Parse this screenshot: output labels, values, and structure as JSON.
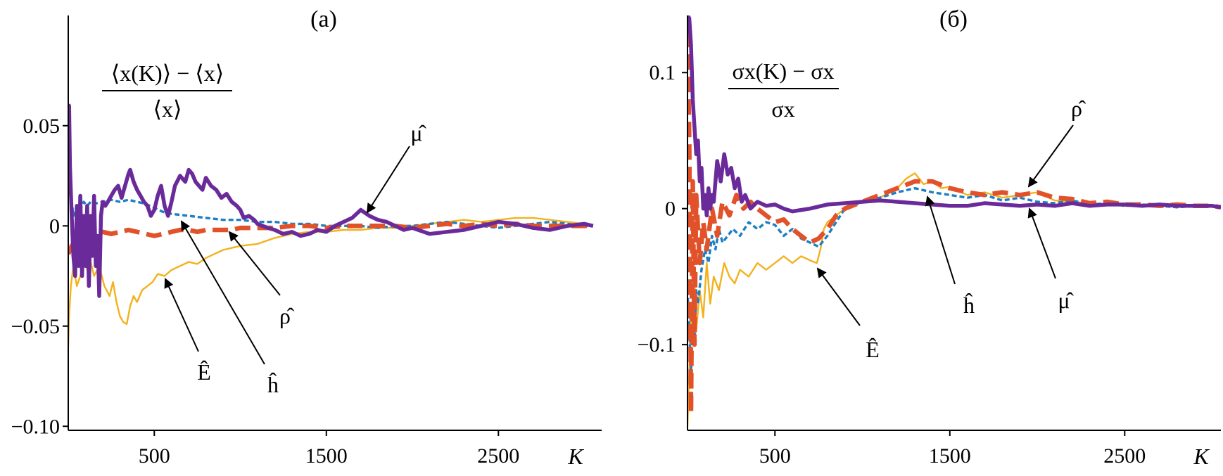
{
  "chart_data": [
    {
      "type": "line",
      "panel_label": "(а)",
      "ylabel_expression": {
        "numerator": "⟨x(K)⟩ − ⟨x⟩",
        "denominator": "⟨x⟩"
      },
      "xlabel": "K",
      "xlim": [
        0,
        3100
      ],
      "ylim": [
        -0.102,
        0.105
      ],
      "xticks": [
        500,
        1500,
        2500
      ],
      "xtick_labels": [
        "500",
        "1500",
        "2500"
      ],
      "yticks": [
        -0.1,
        -0.05,
        0,
        0.05
      ],
      "ytick_labels": [
        "−0.10",
        "−0.05",
        "0",
        "0.05"
      ],
      "grid": false,
      "series": [
        {
          "name": "Ê",
          "color": "#f2b21c",
          "style": "solid-thin",
          "x": [
            0,
            5,
            15,
            30,
            50,
            70,
            90,
            110,
            130,
            150,
            180,
            210,
            240,
            260,
            280,
            300,
            320,
            340,
            360,
            380,
            400,
            430,
            460,
            490,
            520,
            560,
            600,
            650,
            700,
            750,
            800,
            850,
            900,
            950,
            1000,
            1100,
            1200,
            1300,
            1400,
            1500,
            1600,
            1700,
            1800,
            1900,
            2000,
            2100,
            2200,
            2300,
            2400,
            2500,
            2600,
            2700,
            2800,
            2900,
            3000,
            3050
          ],
          "y": [
            -0.06,
            -0.045,
            -0.03,
            -0.02,
            -0.03,
            -0.025,
            -0.015,
            -0.022,
            -0.018,
            -0.025,
            -0.02,
            -0.03,
            -0.035,
            -0.028,
            -0.038,
            -0.045,
            -0.048,
            -0.049,
            -0.04,
            -0.035,
            -0.038,
            -0.032,
            -0.03,
            -0.028,
            -0.024,
            -0.025,
            -0.022,
            -0.02,
            -0.018,
            -0.019,
            -0.016,
            -0.014,
            -0.012,
            -0.011,
            -0.01,
            -0.009,
            -0.006,
            -0.004,
            -0.003,
            -0.003,
            -0.002,
            -0.002,
            -0.001,
            -0.001,
            0.0,
            0.001,
            0.002,
            0.003,
            0.002,
            0.003,
            0.004,
            0.004,
            0.003,
            0.002,
            0.001,
            0.0
          ]
        },
        {
          "name": "ĥ",
          "color": "#1c7fc4",
          "style": "dotted",
          "x": [
            0,
            10,
            30,
            50,
            70,
            90,
            110,
            130,
            150,
            200,
            250,
            300,
            350,
            400,
            450,
            500,
            550,
            600,
            700,
            800,
            900,
            1000,
            1100,
            1200,
            1300,
            1400,
            1500,
            1600,
            1700,
            1800,
            1900,
            2000,
            2100,
            2200,
            2300,
            2400,
            2500,
            2600,
            2700,
            2800,
            2900,
            3000,
            3050
          ],
          "y": [
            0.04,
            0.02,
            0.005,
            0.01,
            0.008,
            0.012,
            0.01,
            0.012,
            0.011,
            0.012,
            0.013,
            0.012,
            0.013,
            0.012,
            0.011,
            0.009,
            0.007,
            0.006,
            0.005,
            0.004,
            0.003,
            0.003,
            0.002,
            0.002,
            0.001,
            0.001,
            0.0,
            0.0,
            0.0,
            -0.001,
            0.0,
            0.0,
            0.001,
            0.002,
            0.001,
            0.0,
            -0.001,
            0.0,
            0.001,
            0.002,
            0.001,
            0.0,
            0.0
          ]
        },
        {
          "name": "ρ̂",
          "color": "#e2522a",
          "style": "dashed-thick",
          "x": [
            0,
            20,
            50,
            100,
            150,
            200,
            250,
            300,
            350,
            400,
            450,
            500,
            550,
            600,
            650,
            700,
            750,
            800,
            850,
            900,
            950,
            1000,
            1050,
            1100,
            1200,
            1300,
            1400,
            1500,
            1600,
            1700,
            1800,
            1900,
            2000,
            2100,
            2200,
            2300,
            2400,
            2500,
            2600,
            2700,
            2800,
            2900,
            3000,
            3050
          ],
          "y": [
            -0.014,
            -0.01,
            -0.006,
            -0.004,
            -0.003,
            -0.003,
            -0.004,
            -0.003,
            -0.002,
            -0.003,
            -0.004,
            -0.005,
            -0.004,
            -0.003,
            -0.002,
            -0.002,
            -0.003,
            -0.002,
            -0.002,
            -0.002,
            -0.002,
            -0.001,
            -0.001,
            -0.001,
            -0.001,
            0.0,
            0.0,
            -0.001,
            0.0,
            0.0,
            0.0,
            0.0,
            -0.001,
            0.0,
            0.001,
            0.0,
            0.001,
            0.0,
            0.001,
            0.0,
            0.0,
            0.0,
            0.0,
            0.0
          ]
        },
        {
          "name": "μ̂",
          "color": "#6a2a9a",
          "style": "solid-thick",
          "x": [
            0,
            5,
            10,
            20,
            30,
            40,
            50,
            60,
            70,
            80,
            90,
            100,
            110,
            120,
            130,
            140,
            150,
            160,
            170,
            180,
            190,
            200,
            215,
            230,
            250,
            270,
            290,
            310,
            330,
            350,
            360,
            380,
            400,
            420,
            440,
            460,
            480,
            500,
            520,
            540,
            560,
            580,
            600,
            620,
            650,
            680,
            700,
            720,
            740,
            760,
            780,
            800,
            830,
            860,
            890,
            920,
            950,
            980,
            1000,
            1020,
            1050,
            1080,
            1100,
            1130,
            1160,
            1200,
            1250,
            1300,
            1350,
            1400,
            1450,
            1500,
            1550,
            1600,
            1650,
            1700,
            1750,
            1800,
            1850,
            1900,
            1950,
            2000,
            2100,
            2200,
            2300,
            2400,
            2500,
            2600,
            2700,
            2800,
            2900,
            3000,
            3050
          ],
          "y": [
            0.015,
            0.06,
            0.03,
            0.005,
            -0.015,
            -0.025,
            0.01,
            -0.02,
            0.015,
            -0.025,
            0.005,
            -0.02,
            0.01,
            -0.03,
            0.005,
            -0.015,
            0.015,
            -0.02,
            -0.005,
            -0.035,
            0.005,
            0.012,
            0.01,
            0.012,
            0.015,
            0.018,
            0.02,
            0.014,
            0.02,
            0.026,
            0.028,
            0.022,
            0.018,
            0.015,
            0.012,
            0.01,
            0.005,
            0.008,
            0.015,
            0.02,
            0.01,
            0.005,
            0.012,
            0.02,
            0.025,
            0.022,
            0.028,
            0.026,
            0.022,
            0.02,
            0.018,
            0.024,
            0.02,
            0.018,
            0.014,
            0.016,
            0.012,
            0.01,
            0.008,
            0.004,
            0.005,
            0.003,
            0.001,
            0.0,
            -0.001,
            -0.002,
            -0.004,
            -0.003,
            -0.005,
            -0.004,
            -0.002,
            -0.003,
            0.0,
            0.002,
            0.004,
            0.008,
            0.005,
            0.003,
            0.002,
            0.0,
            -0.002,
            -0.001,
            -0.004,
            -0.003,
            -0.002,
            0.0,
            0.002,
            0.001,
            -0.001,
            -0.002,
            0.0,
            0.001,
            0.0
          ]
        }
      ],
      "annotations": [
        "μ̂",
        "ρ̂",
        "ĥ",
        "Ê"
      ]
    },
    {
      "type": "line",
      "panel_label": "(б)",
      "ylabel_expression": {
        "numerator": "σx(K) − σx",
        "denominator": "σx"
      },
      "xlabel": "K",
      "xlim": [
        0,
        3050
      ],
      "ylim": [
        -0.163,
        0.142
      ],
      "xticks": [
        500,
        1500,
        2500
      ],
      "xtick_labels": [
        "500",
        "1500",
        "2500"
      ],
      "yticks": [
        -0.1,
        0,
        0.1
      ],
      "ytick_labels": [
        "−0.1",
        "0",
        "0.1"
      ],
      "grid": false,
      "series": [
        {
          "name": "Ê",
          "color": "#f2b21c",
          "style": "solid-thin",
          "x": [
            0,
            10,
            20,
            30,
            40,
            50,
            70,
            90,
            110,
            130,
            150,
            180,
            210,
            240,
            270,
            300,
            350,
            400,
            450,
            500,
            550,
            600,
            650,
            700,
            740,
            760,
            780,
            800,
            850,
            900,
            950,
            1000,
            1100,
            1200,
            1250,
            1300,
            1350,
            1400,
            1450,
            1500,
            1600,
            1700,
            1800,
            1900,
            2000,
            2100,
            2200,
            2300,
            2400,
            2500,
            2600,
            2700,
            2800,
            2900,
            3000,
            3050
          ],
          "y": [
            -0.16,
            -0.12,
            -0.08,
            -0.1,
            -0.05,
            -0.09,
            -0.06,
            -0.08,
            -0.04,
            -0.07,
            -0.05,
            -0.06,
            -0.04,
            -0.05,
            -0.055,
            -0.045,
            -0.05,
            -0.04,
            -0.045,
            -0.04,
            -0.035,
            -0.04,
            -0.035,
            -0.038,
            -0.04,
            -0.03,
            -0.015,
            -0.01,
            -0.005,
            0.0,
            0.002,
            0.005,
            0.008,
            0.015,
            0.022,
            0.026,
            0.018,
            0.02,
            0.015,
            0.016,
            0.01,
            0.012,
            0.008,
            0.01,
            0.012,
            0.006,
            0.005,
            0.004,
            0.003,
            0.002,
            0.002,
            0.003,
            0.003,
            0.002,
            0.002,
            0.001
          ]
        },
        {
          "name": "ĥ",
          "color": "#1c7fc4",
          "style": "dotted",
          "x": [
            0,
            10,
            20,
            30,
            40,
            50,
            60,
            80,
            100,
            120,
            140,
            160,
            180,
            200,
            230,
            260,
            300,
            350,
            400,
            450,
            500,
            550,
            600,
            650,
            700,
            750,
            800,
            850,
            900,
            1000,
            1100,
            1200,
            1300,
            1400,
            1500,
            1600,
            1700,
            1800,
            1900,
            2000,
            2100,
            2200,
            2300,
            2400,
            2500,
            2600,
            2700,
            2800,
            2900,
            3000,
            3050
          ],
          "y": [
            -0.06,
            -0.09,
            -0.12,
            -0.08,
            -0.1,
            -0.06,
            -0.07,
            -0.045,
            -0.03,
            -0.04,
            -0.02,
            -0.03,
            -0.015,
            -0.025,
            -0.02,
            -0.015,
            -0.02,
            -0.01,
            -0.015,
            -0.01,
            -0.012,
            -0.02,
            -0.015,
            -0.022,
            -0.025,
            -0.028,
            -0.02,
            -0.01,
            0.0,
            0.005,
            0.008,
            0.012,
            0.015,
            0.012,
            0.01,
            0.008,
            0.01,
            0.006,
            0.008,
            0.005,
            0.004,
            0.006,
            0.003,
            0.004,
            0.002,
            0.003,
            0.002,
            0.001,
            0.002,
            0.002,
            0.001
          ]
        },
        {
          "name": "ρ̂",
          "color": "#e2522a",
          "style": "dashed-thick",
          "x": [
            0,
            10,
            20,
            30,
            40,
            50,
            70,
            90,
            110,
            140,
            170,
            200,
            240,
            280,
            320,
            360,
            400,
            450,
            500,
            550,
            600,
            650,
            700,
            750,
            800,
            850,
            900,
            1000,
            1100,
            1200,
            1300,
            1400,
            1500,
            1600,
            1700,
            1800,
            1900,
            2000,
            2100,
            2200,
            2300,
            2400,
            2500,
            2600,
            2700,
            2800,
            2900,
            3000,
            3050
          ],
          "y": [
            0.13,
            0.05,
            -0.15,
            0.02,
            -0.1,
            0.01,
            -0.04,
            -0.01,
            -0.03,
            0.0,
            -0.02,
            0.005,
            -0.005,
            0.01,
            0.0,
            0.005,
            0.0,
            -0.005,
            -0.01,
            -0.008,
            -0.015,
            -0.02,
            -0.025,
            -0.022,
            -0.015,
            -0.005,
            0.0,
            0.005,
            0.01,
            0.015,
            0.02,
            0.02,
            0.015,
            0.012,
            0.01,
            0.012,
            0.01,
            0.012,
            0.008,
            0.007,
            0.004,
            0.005,
            0.003,
            0.003,
            0.002,
            0.003,
            0.002,
            0.002,
            0.001
          ]
        },
        {
          "name": "μ̂",
          "color": "#6a2a9a",
          "style": "solid-thick",
          "x": [
            0,
            10,
            20,
            30,
            40,
            50,
            60,
            70,
            80,
            90,
            100,
            110,
            120,
            130,
            140,
            150,
            170,
            190,
            210,
            230,
            250,
            270,
            290,
            310,
            330,
            360,
            400,
            450,
            500,
            550,
            600,
            700,
            800,
            900,
            1000,
            1100,
            1200,
            1300,
            1400,
            1500,
            1600,
            1700,
            1800,
            1900,
            2000,
            2100,
            2200,
            2300,
            2400,
            2500,
            2600,
            2700,
            2800,
            2900,
            3000,
            3050
          ],
          "y": [
            0.142,
            0.14,
            0.12,
            0.08,
            0.06,
            0.04,
            0.05,
            0.02,
            0.03,
            0.0,
            0.01,
            -0.005,
            0.015,
            0.0,
            0.01,
            0.005,
            0.035,
            0.02,
            0.04,
            0.025,
            0.03,
            0.015,
            0.022,
            0.005,
            0.01,
            0.0,
            0.005,
            0.002,
            0.003,
            0.0,
            -0.002,
            0.0,
            0.003,
            0.004,
            0.005,
            0.006,
            0.005,
            0.004,
            0.003,
            0.002,
            0.002,
            0.004,
            0.003,
            0.002,
            0.003,
            0.002,
            0.004,
            0.002,
            0.003,
            0.003,
            0.002,
            0.003,
            0.002,
            0.002,
            0.002,
            0.001
          ]
        }
      ],
      "annotations": [
        "ρ̂",
        "ĥ",
        "μ̂",
        "Ê"
      ]
    }
  ]
}
